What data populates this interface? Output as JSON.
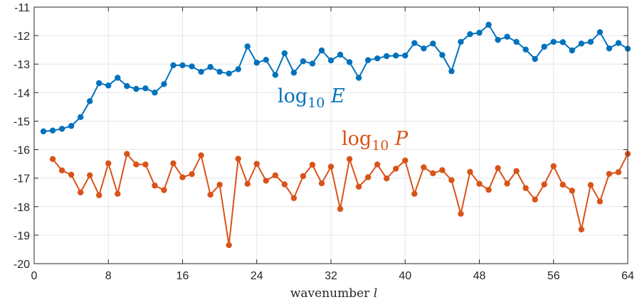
{
  "chart_data": {
    "type": "line",
    "xlabel": "wavenumber",
    "xlabel_symbol": "l",
    "xlim": [
      0,
      64
    ],
    "ylim": [
      -20,
      -11
    ],
    "xticks": [
      0,
      8,
      16,
      24,
      32,
      40,
      48,
      56,
      64
    ],
    "yticks": [
      -20,
      -19,
      -18,
      -17,
      -16,
      -15,
      -14,
      -13,
      -12,
      -11
    ],
    "grid": true,
    "series": [
      {
        "label_base": "log",
        "label_sub": "10",
        "label_var": "E",
        "color": "#0072BD",
        "x": [
          1,
          2,
          3,
          4,
          5,
          6,
          7,
          8,
          9,
          10,
          11,
          12,
          13,
          14,
          15,
          16,
          17,
          18,
          19,
          20,
          21,
          22,
          23,
          24,
          25,
          26,
          27,
          28,
          29,
          30,
          31,
          32,
          33,
          34,
          35,
          36,
          37,
          38,
          39,
          40,
          41,
          42,
          43,
          44,
          45,
          46,
          47,
          48,
          49,
          50,
          51,
          52,
          53,
          54,
          55,
          56,
          57,
          58,
          59,
          60,
          61,
          62,
          63,
          64
        ],
        "y": [
          -15.36,
          -15.33,
          -15.27,
          -15.17,
          -14.86,
          -14.3,
          -13.67,
          -13.75,
          -13.48,
          -13.77,
          -13.87,
          -13.85,
          -14.0,
          -13.7,
          -13.04,
          -13.04,
          -13.08,
          -13.27,
          -13.1,
          -13.27,
          -13.33,
          -13.18,
          -12.38,
          -12.95,
          -12.85,
          -13.38,
          -12.62,
          -13.3,
          -12.9,
          -12.98,
          -12.52,
          -12.87,
          -12.67,
          -12.93,
          -13.48,
          -12.86,
          -12.8,
          -12.72,
          -12.7,
          -12.7,
          -12.26,
          -12.45,
          -12.28,
          -12.68,
          -13.25,
          -12.22,
          -11.95,
          -11.9,
          -11.62,
          -12.15,
          -12.04,
          -12.22,
          -12.49,
          -12.82,
          -12.39,
          -12.22,
          -12.23,
          -12.52,
          -12.28,
          -12.22,
          -11.88,
          -12.45,
          -12.26,
          -12.46
        ]
      },
      {
        "label_base": "log",
        "label_sub": "10",
        "label_var": "P",
        "color": "#D95319",
        "x": [
          2,
          3,
          4,
          5,
          6,
          7,
          8,
          9,
          10,
          11,
          12,
          13,
          14,
          15,
          16,
          17,
          18,
          19,
          20,
          21,
          22,
          23,
          24,
          25,
          26,
          27,
          28,
          29,
          30,
          31,
          32,
          33,
          34,
          35,
          36,
          37,
          38,
          39,
          40,
          41,
          42,
          43,
          44,
          45,
          46,
          47,
          48,
          49,
          50,
          51,
          52,
          53,
          54,
          55,
          56,
          57,
          58,
          59,
          60,
          61,
          62,
          63,
          64
        ],
        "y": [
          -16.33,
          -16.73,
          -16.88,
          -17.5,
          -16.9,
          -17.6,
          -16.48,
          -17.55,
          -16.15,
          -16.52,
          -16.52,
          -17.26,
          -17.42,
          -16.48,
          -16.97,
          -16.86,
          -16.2,
          -17.58,
          -17.23,
          -19.35,
          -16.32,
          -17.2,
          -16.5,
          -17.09,
          -16.9,
          -17.22,
          -17.7,
          -16.93,
          -16.53,
          -17.18,
          -16.6,
          -18.08,
          -16.33,
          -17.3,
          -16.97,
          -16.52,
          -17.01,
          -16.67,
          -16.38,
          -17.55,
          -16.62,
          -16.83,
          -16.72,
          -17.07,
          -18.25,
          -16.78,
          -17.2,
          -17.41,
          -16.65,
          -17.19,
          -16.75,
          -17.35,
          -17.75,
          -17.22,
          -16.58,
          -17.23,
          -17.44,
          -18.8,
          -17.24,
          -17.82,
          -16.85,
          -16.79,
          -16.15
        ]
      }
    ]
  }
}
